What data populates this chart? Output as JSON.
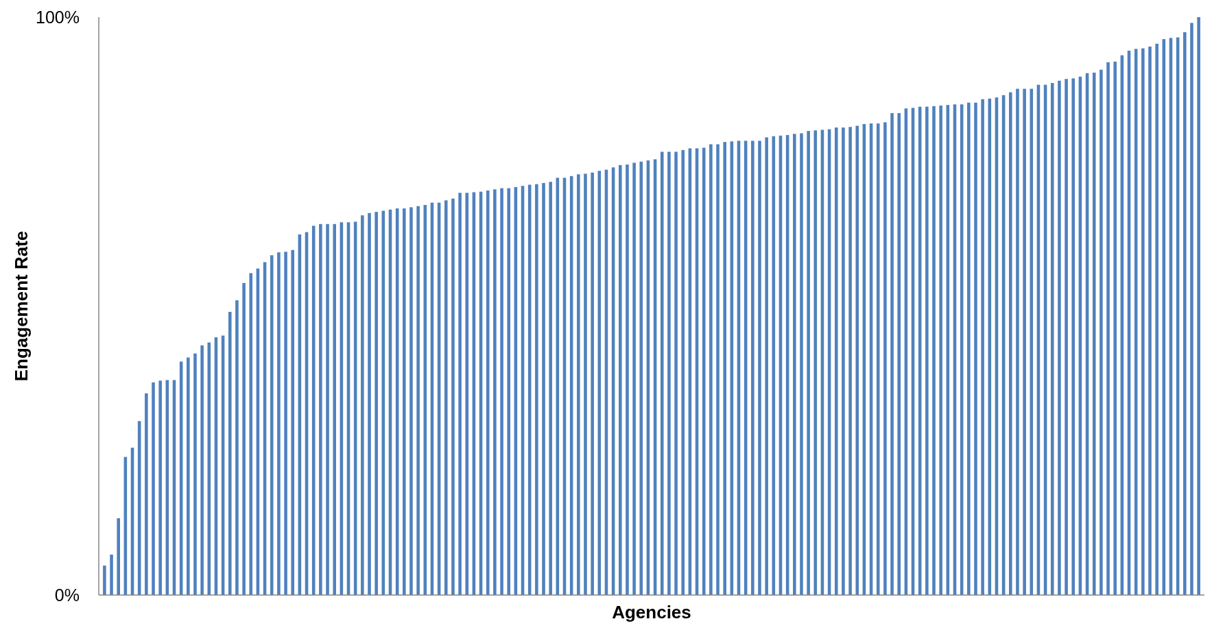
{
  "chart_data": {
    "type": "bar",
    "xlabel": "Agencies",
    "ylabel": "Engagement Rate",
    "color": "#4f81bd",
    "ylim": [
      0,
      100
    ],
    "yticks": [
      {
        "value": 0,
        "label": "0%"
      },
      {
        "value": 100,
        "label": "100%"
      }
    ],
    "categories": [
      null,
      null,
      null,
      null,
      null,
      null,
      null,
      null,
      null,
      null,
      null,
      null,
      null,
      null,
      null,
      null,
      null,
      null,
      null,
      null,
      null,
      null,
      null,
      null,
      null,
      null,
      null,
      null,
      null,
      null,
      null,
      null,
      null,
      null,
      null,
      null,
      null,
      null,
      null,
      null,
      null,
      null,
      null,
      null,
      null,
      null,
      null,
      null,
      null,
      null,
      null,
      null,
      null,
      null,
      null,
      null,
      null,
      null,
      null,
      null,
      null,
      null,
      null,
      null,
      null,
      null,
      null,
      null,
      null,
      null,
      null,
      null,
      null,
      null,
      null,
      null,
      null,
      null,
      null,
      null,
      null,
      null,
      null,
      null,
      null,
      null,
      null,
      null,
      null,
      null,
      null,
      null,
      null,
      null,
      null,
      null,
      null,
      null,
      null,
      null,
      null,
      null,
      null,
      null,
      null,
      null,
      null,
      null,
      null,
      null,
      null,
      null,
      null,
      null,
      null,
      null,
      null,
      null,
      null,
      null,
      null,
      null,
      null,
      null,
      null,
      null,
      null,
      null,
      null,
      null,
      null,
      null,
      null,
      null,
      null,
      null,
      null,
      null,
      null,
      null,
      null,
      null,
      null,
      null,
      null,
      null,
      null,
      null,
      null,
      null,
      null,
      null,
      null,
      null,
      null,
      null,
      null,
      null
    ],
    "values": [
      5.1,
      7.0,
      13.3,
      23.9,
      25.5,
      30.1,
      34.9,
      36.8,
      37.1,
      37.2,
      37.2,
      40.4,
      41.1,
      41.8,
      43.2,
      43.7,
      44.6,
      44.9,
      49.0,
      51.0,
      54.0,
      55.7,
      56.5,
      57.6,
      58.8,
      59.3,
      59.4,
      59.7,
      62.4,
      62.8,
      63.9,
      64.2,
      64.2,
      64.2,
      64.5,
      64.5,
      64.6,
      65.7,
      66.1,
      66.3,
      66.5,
      66.7,
      66.9,
      66.9,
      67.1,
      67.3,
      67.5,
      67.9,
      67.9,
      68.3,
      68.6,
      69.6,
      69.6,
      69.7,
      69.8,
      70.0,
      70.2,
      70.4,
      70.4,
      70.6,
      70.8,
      71.0,
      71.1,
      71.3,
      71.5,
      72.2,
      72.2,
      72.5,
      72.8,
      72.9,
      73.1,
      73.4,
      73.6,
      74.0,
      74.4,
      74.5,
      74.8,
      75.0,
      75.2,
      75.4,
      76.7,
      76.7,
      76.7,
      77.0,
      77.3,
      77.3,
      77.4,
      78.0,
      78.0,
      78.4,
      78.5,
      78.6,
      78.6,
      78.6,
      78.6,
      79.2,
      79.4,
      79.5,
      79.6,
      79.8,
      79.9,
      80.3,
      80.4,
      80.5,
      80.6,
      80.9,
      80.9,
      81.0,
      81.2,
      81.5,
      81.6,
      81.6,
      81.8,
      83.4,
      83.4,
      84.2,
      84.3,
      84.5,
      84.5,
      84.6,
      84.7,
      84.8,
      84.9,
      84.9,
      85.2,
      85.2,
      85.8,
      85.9,
      86.1,
      86.5,
      87.0,
      87.6,
      87.6,
      87.6,
      88.3,
      88.3,
      88.6,
      89.0,
      89.3,
      89.4,
      89.7,
      90.3,
      90.4,
      90.9,
      92.2,
      92.3,
      93.4,
      94.2,
      94.5,
      94.6,
      94.9,
      95.4,
      96.2,
      96.4,
      96.5,
      97.4,
      99.0,
      100
    ]
  }
}
